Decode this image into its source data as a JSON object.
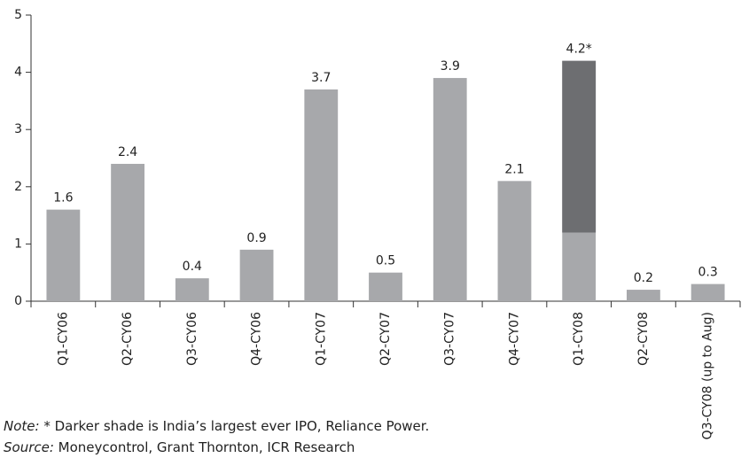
{
  "chart_data": {
    "type": "bar",
    "categories": [
      "Q1-CY06",
      "Q2-CY06",
      "Q3-CY06",
      "Q4-CY06",
      "Q1-CY07",
      "Q2-CY07",
      "Q3-CY07",
      "Q4-CY07",
      "Q1-CY08",
      "Q2-CY08",
      "Q3-CY08 (up to Aug)"
    ],
    "values": [
      1.6,
      2.4,
      0.4,
      0.9,
      3.7,
      0.5,
      3.9,
      2.1,
      4.2,
      0.2,
      0.3
    ],
    "value_labels": [
      "1.6",
      "2.4",
      "0.4",
      "0.9",
      "3.7",
      "0.5",
      "3.9",
      "2.1",
      "4.2*",
      "0.2",
      "0.3"
    ],
    "color": "#a7a8ab",
    "highlight_values": [
      null,
      null,
      null,
      null,
      null,
      null,
      null,
      null,
      3.0,
      null,
      null
    ],
    "highlight_color": "#6d6e71",
    "ylim": [
      0,
      5
    ],
    "yticks": [
      0,
      1,
      2,
      3,
      4,
      5
    ],
    "grid": false,
    "note": {
      "label": "Note:",
      "text": " * Darker shade is India’s largest ever IPO, Reliance Power."
    },
    "source": {
      "label": "Source:",
      "text": " Moneycontrol, Grant Thornton, ICR Research"
    }
  }
}
